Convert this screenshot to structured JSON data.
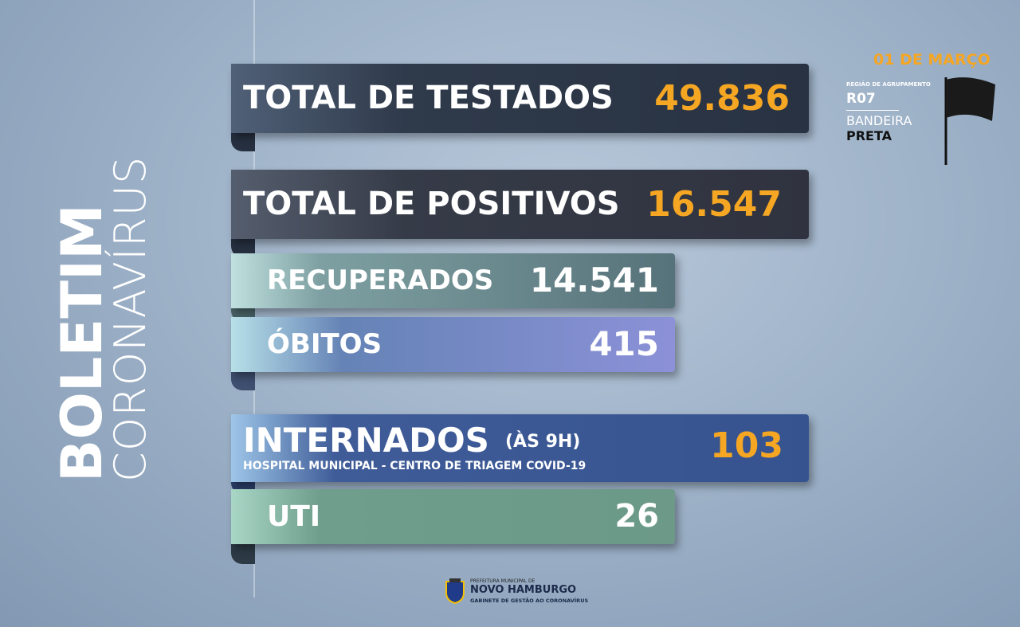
{
  "side": {
    "title": "BOLETIM",
    "subtitle": "CORONAVÍRUS"
  },
  "date": "01 DE MARÇO",
  "region": {
    "label": "REGIÃO DE AGRUPAMENTO",
    "code": "R07",
    "flag_label": "BANDEIRA",
    "flag": "PRETA"
  },
  "banners": [
    {
      "label": "TOTAL DE TESTADOS",
      "value": "49.836"
    },
    {
      "label": "TOTAL DE POSITIVOS",
      "value": "16.547"
    },
    {
      "label": "RECUPERADOS",
      "value": "14.541"
    },
    {
      "label": "ÓBITOS",
      "value": "415"
    },
    {
      "label": "INTERNADOS",
      "note": "(ÀS 9H)",
      "detail": "HOSPITAL MUNICIPAL - CENTRO DE TRIAGEM COVID-19",
      "value": "103"
    },
    {
      "label": "UTI",
      "value": "26"
    }
  ],
  "footer": {
    "line1": "PREFEITURA MUNICIPAL DE",
    "line2": "NOVO HAMBURGO",
    "line3": "GABINETE DE GESTÃO AO CORONAVÍRUS"
  }
}
